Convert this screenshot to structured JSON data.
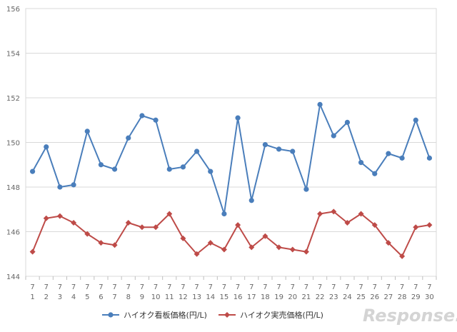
{
  "chart_data": {
    "type": "line",
    "title": "",
    "xlabel": "",
    "ylabel": "",
    "ylim": [
      144,
      156
    ],
    "yticks": [
      144,
      146,
      148,
      150,
      152,
      154,
      156
    ],
    "grid": true,
    "legend": "bottom",
    "categories": [
      [
        "7",
        "1"
      ],
      [
        "7",
        "2"
      ],
      [
        "7",
        "3"
      ],
      [
        "7",
        "4"
      ],
      [
        "7",
        "5"
      ],
      [
        "7",
        "6"
      ],
      [
        "7",
        "7"
      ],
      [
        "7",
        "8"
      ],
      [
        "7",
        "9"
      ],
      [
        "7",
        "10"
      ],
      [
        "7",
        "11"
      ],
      [
        "7",
        "12"
      ],
      [
        "7",
        "13"
      ],
      [
        "7",
        "14"
      ],
      [
        "7",
        "15"
      ],
      [
        "7",
        "16"
      ],
      [
        "7",
        "17"
      ],
      [
        "7",
        "18"
      ],
      [
        "7",
        "19"
      ],
      [
        "7",
        "20"
      ],
      [
        "7",
        "21"
      ],
      [
        "7",
        "22"
      ],
      [
        "7",
        "23"
      ],
      [
        "7",
        "24"
      ],
      [
        "7",
        "25"
      ],
      [
        "7",
        "26"
      ],
      [
        "7",
        "27"
      ],
      [
        "7",
        "28"
      ],
      [
        "7",
        "29"
      ],
      [
        "7",
        "30"
      ]
    ],
    "series": [
      {
        "name": "ハイオク看板価格(円/L)",
        "color": "#4a7ebb",
        "marker": "circle",
        "values": [
          148.7,
          149.8,
          148.0,
          148.1,
          150.5,
          149.0,
          148.8,
          150.2,
          151.2,
          151.0,
          148.8,
          148.9,
          149.6,
          148.7,
          146.8,
          151.1,
          147.4,
          149.9,
          149.7,
          149.6,
          147.9,
          151.7,
          150.3,
          150.9,
          149.1,
          148.6,
          149.5,
          149.3,
          151.0,
          149.3
        ]
      },
      {
        "name": "ハイオク実売価格(円/L)",
        "color": "#be4b48",
        "marker": "diamond",
        "values": [
          145.1,
          146.6,
          146.7,
          146.4,
          145.9,
          145.5,
          145.4,
          146.4,
          146.2,
          146.2,
          146.8,
          145.7,
          145.0,
          145.5,
          145.2,
          146.3,
          145.3,
          145.8,
          145.3,
          145.2,
          145.1,
          146.8,
          146.9,
          146.4,
          146.8,
          146.3,
          145.5,
          144.9,
          146.2,
          146.3
        ]
      }
    ]
  },
  "watermark": "Response."
}
